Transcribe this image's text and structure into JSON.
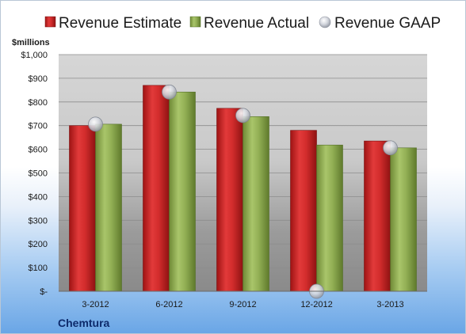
{
  "company": "Chemtura",
  "colors": {
    "estimate": "#cc2a2a",
    "actual": "#8fad4e",
    "gaap": "#c9ccd4"
  },
  "chart_data": {
    "type": "bar",
    "ylabel": "$millions",
    "ylim": [
      0,
      1000
    ],
    "yticks": [
      "$-",
      "$100",
      "$200",
      "$300",
      "$400",
      "$500",
      "$600",
      "$700",
      "$800",
      "$900",
      "$1,000"
    ],
    "grid": true,
    "legend_position": "top",
    "categories": [
      "3-2012",
      "6-2012",
      "9-2012",
      "12-2012",
      "3-2013"
    ],
    "series": [
      {
        "name": "Revenue Estimate",
        "kind": "bar",
        "values": [
          700,
          870,
          773,
          680,
          635
        ]
      },
      {
        "name": "Revenue Actual",
        "kind": "bar",
        "values": [
          706,
          842,
          738,
          618,
          606
        ]
      },
      {
        "name": "Revenue GAAP",
        "kind": "marker",
        "values": [
          706,
          842,
          743,
          0,
          606
        ]
      }
    ]
  }
}
